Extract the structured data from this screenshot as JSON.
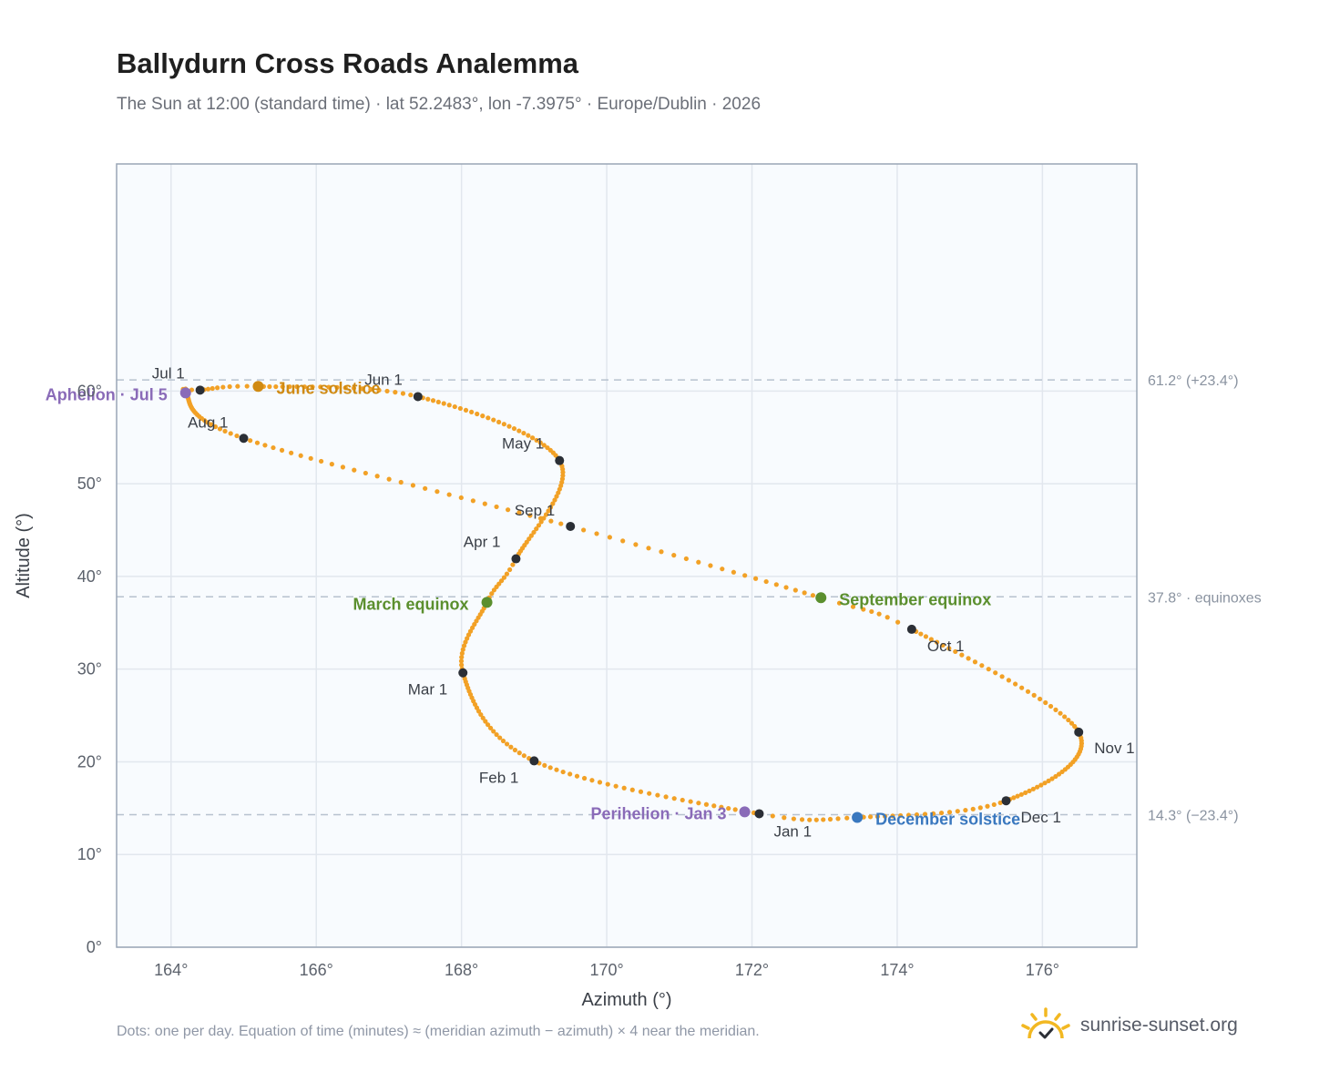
{
  "header": {
    "title": "Ballydurn Cross Roads Analemma",
    "subtitle": "The Sun at 12:00 (standard time) · lat 52.2483°, lon -7.3975° · Europe/Dublin · 2026"
  },
  "footer": {
    "note": "Dots: one per day. Equation of time (minutes) ≈ (meridian azimuth − azimuth) × 4 near the meridian.",
    "brand": "sunrise-sunset.org",
    "brand_icon": "sun-logo-icon"
  },
  "colors": {
    "curve": "#f2a126",
    "month_dot": "#2b2f36",
    "equinox": "#5b8f2e",
    "june_solstice": "#d08a12",
    "december_solstice": "#3a78bf",
    "apsis": "#8a6bb8",
    "plot_bg": "#f8fbfe",
    "grid": "#e2e7ee",
    "frame": "#9aa6b6",
    "ref_line": "#b7c2cf",
    "ref_text": "#8a93a0"
  },
  "chart_data": {
    "type": "scatter",
    "xlabel": "Azimuth (°)",
    "ylabel": "Altitude (°)",
    "xlim": [
      163.25,
      177.3
    ],
    "ylim": [
      0,
      84.5
    ],
    "xticks": [
      164,
      166,
      168,
      170,
      172,
      174,
      176
    ],
    "xtick_labels": [
      "164°",
      "166°",
      "168°",
      "170°",
      "172°",
      "174°",
      "176°"
    ],
    "yticks": [
      0,
      10,
      20,
      30,
      40,
      50,
      60
    ],
    "ytick_labels": [
      "0°",
      "10°",
      "20°",
      "30°",
      "40°",
      "50°",
      "60°"
    ],
    "grid": true,
    "reference_lines": [
      {
        "y": 61.2,
        "label": "61.2° (+23.4°)"
      },
      {
        "y": 37.8,
        "label": "37.8° · equinoxes"
      },
      {
        "y": 14.3,
        "label": "14.3° (−23.4°)"
      }
    ],
    "path_days": [
      0,
      31,
      59,
      79,
      90,
      120,
      151,
      172,
      181,
      185,
      212,
      243,
      265,
      273,
      304,
      334,
      354,
      365
    ],
    "path_points": [
      [
        172.1,
        14.4
      ],
      [
        169.0,
        20.1
      ],
      [
        168.02,
        29.6
      ],
      [
        168.35,
        37.2
      ],
      [
        168.75,
        41.9
      ],
      [
        169.35,
        52.5
      ],
      [
        167.4,
        59.4
      ],
      [
        165.2,
        60.5
      ],
      [
        164.4,
        60.1
      ],
      [
        164.2,
        59.8
      ],
      [
        165.0,
        54.9
      ],
      [
        169.5,
        45.4
      ],
      [
        172.95,
        37.7
      ],
      [
        174.2,
        34.3
      ],
      [
        176.5,
        23.2
      ],
      [
        175.5,
        15.8
      ],
      [
        173.45,
        14.0
      ],
      [
        172.1,
        14.4
      ]
    ],
    "months": [
      {
        "label": "Jan 1",
        "x": 172.1,
        "y": 14.4,
        "anchor": "start",
        "dx": 16,
        "dy": 25
      },
      {
        "label": "Feb 1",
        "x": 169.0,
        "y": 20.1,
        "anchor": "end",
        "dx": -17,
        "dy": 24
      },
      {
        "label": "Mar 1",
        "x": 168.02,
        "y": 29.6,
        "anchor": "end",
        "dx": -17,
        "dy": 24
      },
      {
        "label": "Apr 1",
        "x": 168.75,
        "y": 41.9,
        "anchor": "end",
        "dx": -17,
        "dy": -13
      },
      {
        "label": "May 1",
        "x": 169.35,
        "y": 52.5,
        "anchor": "end",
        "dx": -17,
        "dy": -13
      },
      {
        "label": "Jun 1",
        "x": 167.4,
        "y": 59.4,
        "anchor": "end",
        "dx": -17,
        "dy": -13
      },
      {
        "label": "Jul 1",
        "x": 164.4,
        "y": 60.1,
        "anchor": "end",
        "dx": -17,
        "dy": -13
      },
      {
        "label": "Aug 1",
        "x": 165.0,
        "y": 54.9,
        "anchor": "end",
        "dx": -17,
        "dy": -12
      },
      {
        "label": "Sep 1",
        "x": 169.5,
        "y": 45.4,
        "anchor": "end",
        "dx": -17,
        "dy": -12
      },
      {
        "label": "Oct 1",
        "x": 174.2,
        "y": 34.3,
        "anchor": "start",
        "dx": 17,
        "dy": 24
      },
      {
        "label": "Nov 1",
        "x": 176.5,
        "y": 23.2,
        "anchor": "start",
        "dx": 17,
        "dy": 23
      },
      {
        "label": "Dec 1",
        "x": 175.5,
        "y": 15.8,
        "anchor": "start",
        "dx": 16,
        "dy": 24
      }
    ],
    "events": [
      {
        "label": "June solstice",
        "x": 165.2,
        "y": 60.5,
        "color": "#d08a12",
        "anchor": "start",
        "dx": 20,
        "dy": 8
      },
      {
        "label": "December solstice",
        "x": 173.45,
        "y": 14.0,
        "color": "#3a78bf",
        "anchor": "start",
        "dx": 20,
        "dy": 8
      },
      {
        "label": "March equinox",
        "x": 168.35,
        "y": 37.2,
        "color": "#5b8f2e",
        "anchor": "end",
        "dx": -20,
        "dy": 8
      },
      {
        "label": "September equinox",
        "x": 172.95,
        "y": 37.7,
        "color": "#5b8f2e",
        "anchor": "start",
        "dx": 20,
        "dy": 8
      },
      {
        "label": "Perihelion · Jan 3",
        "x": 171.9,
        "y": 14.6,
        "color": "#8a6bb8",
        "anchor": "end",
        "dx": -20,
        "dy": 8
      },
      {
        "label": "Aphelion · Jul 5",
        "x": 164.2,
        "y": 59.8,
        "color": "#8a6bb8",
        "anchor": "end",
        "dx": -20,
        "dy": 8
      }
    ]
  }
}
